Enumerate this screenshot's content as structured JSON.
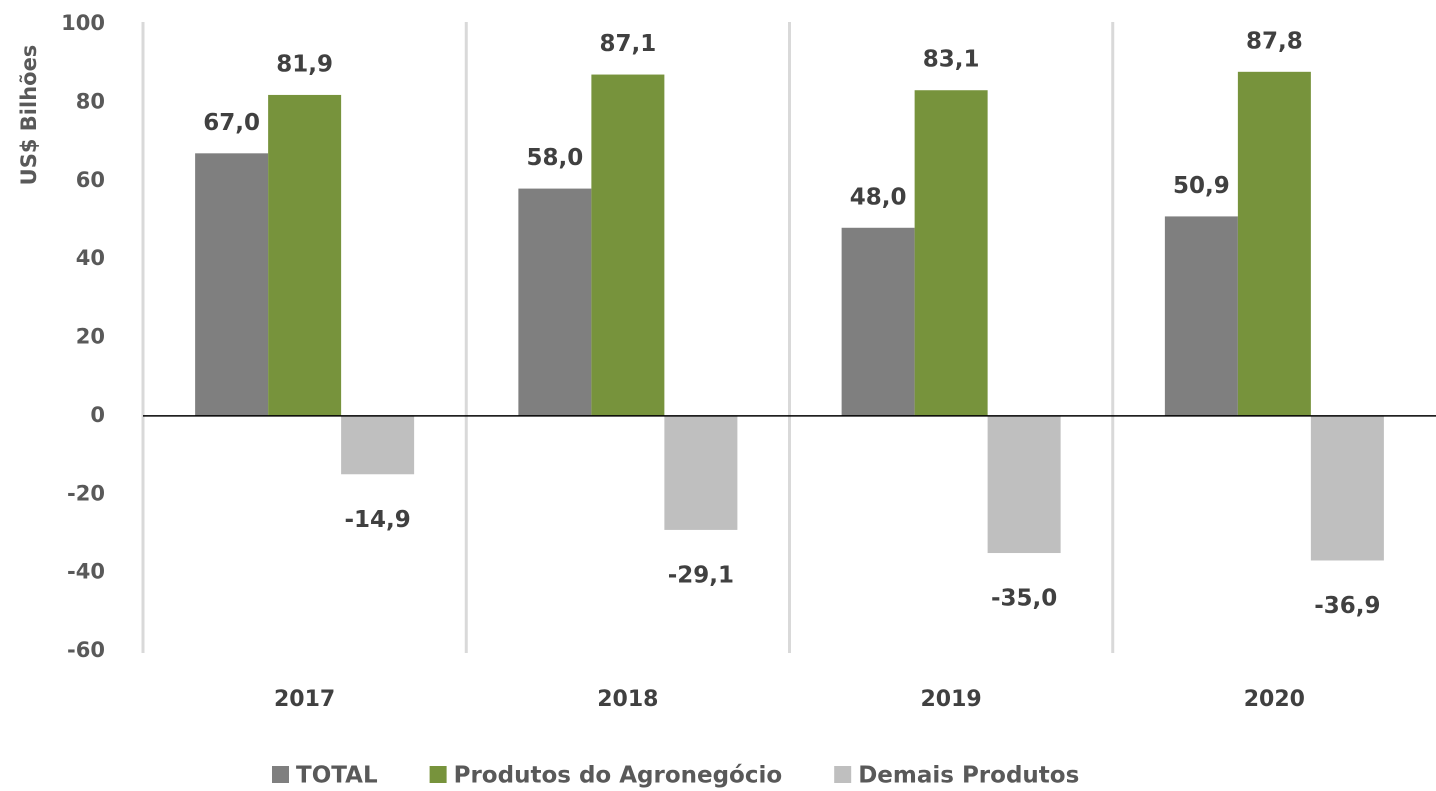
{
  "chart_data": {
    "type": "bar",
    "y_axis_label": "US$ Bilhões",
    "categories": [
      "2017",
      "2018",
      "2019",
      "2020"
    ],
    "series": [
      {
        "name": "TOTAL",
        "color": "#7f7f7f",
        "values": [
          67.0,
          58.0,
          48.0,
          50.9
        ],
        "value_labels": [
          "67,0",
          "58,0",
          "48,0",
          "50,9"
        ]
      },
      {
        "name": "Produtos do Agronegócio",
        "color": "#77933c",
        "values": [
          81.9,
          87.1,
          83.1,
          87.8
        ],
        "value_labels": [
          "81,9",
          "87,1",
          "83,1",
          "87,8"
        ]
      },
      {
        "name": "Demais Produtos",
        "color": "#bfbfbf",
        "values": [
          -14.9,
          -29.1,
          -35.0,
          -36.9
        ],
        "value_labels": [
          "-14,9",
          "-29,1",
          "-35,0",
          "-36,9"
        ]
      }
    ],
    "ylim": [
      -60,
      100
    ],
    "yticks": [
      -60,
      -40,
      -20,
      0,
      20,
      40,
      60,
      80,
      100
    ],
    "grid": false,
    "legend": "bottom"
  }
}
